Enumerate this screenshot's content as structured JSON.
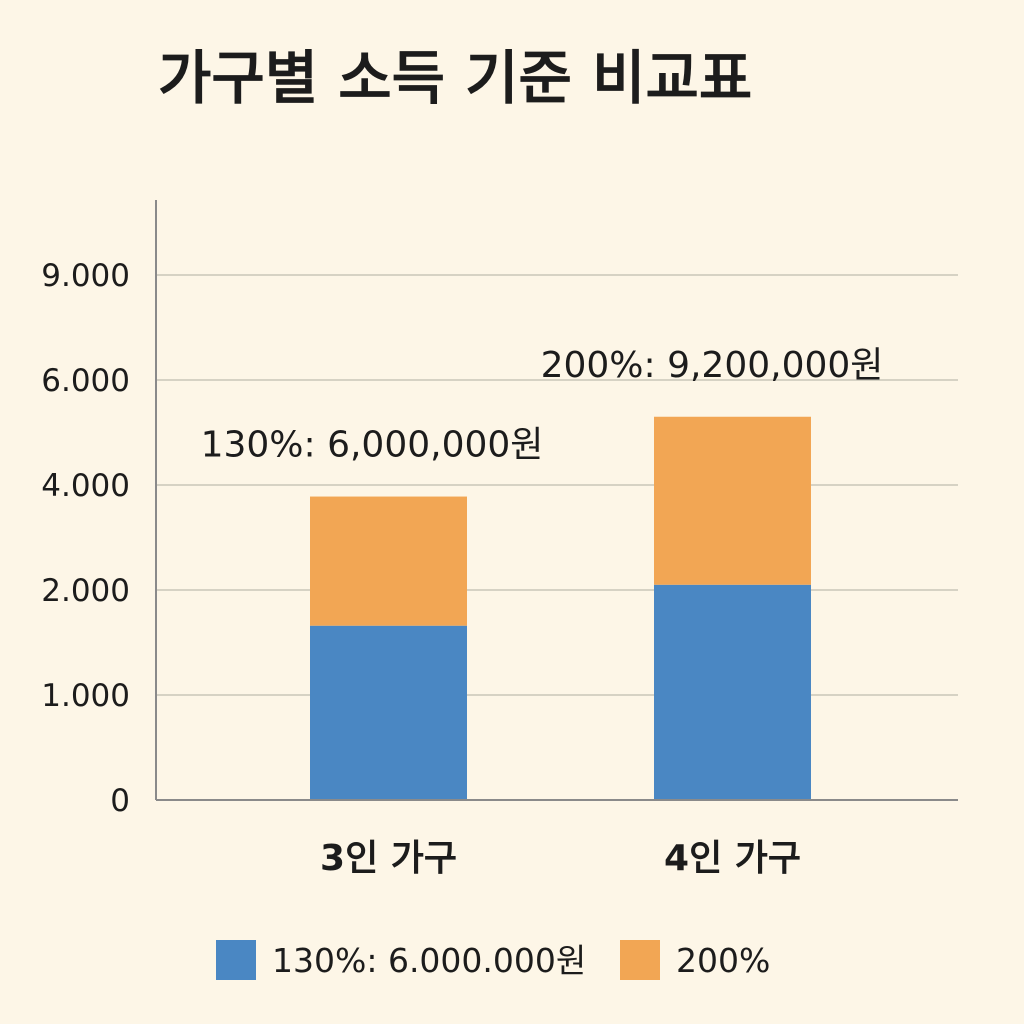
{
  "chart_data": {
    "type": "bar",
    "stacked": true,
    "title": "가구별 소득 기준 비교표",
    "xlabel": "",
    "ylabel": "",
    "categories": [
      "3인 가구",
      "4인 가구"
    ],
    "y_ticks": [
      0,
      1000,
      2000,
      4000,
      6000,
      9000
    ],
    "y_tick_labels": [
      "0",
      "1.000",
      "2.000",
      "4.000",
      "6.000",
      "9.000"
    ],
    "series": [
      {
        "name": "130%: 6.000.000원",
        "color": "#4a87c3",
        "values": [
          1660,
          2100
        ]
      },
      {
        "name": "200%",
        "color": "#f2a654",
        "values": [
          2120,
          3200
        ]
      }
    ],
    "annotations": [
      {
        "text": "130%: 6,000,000원",
        "category_index": 0
      },
      {
        "text": "200%: 9,200,000원",
        "category_index": 1
      }
    ],
    "grid": true,
    "legend": "bottom-center"
  }
}
